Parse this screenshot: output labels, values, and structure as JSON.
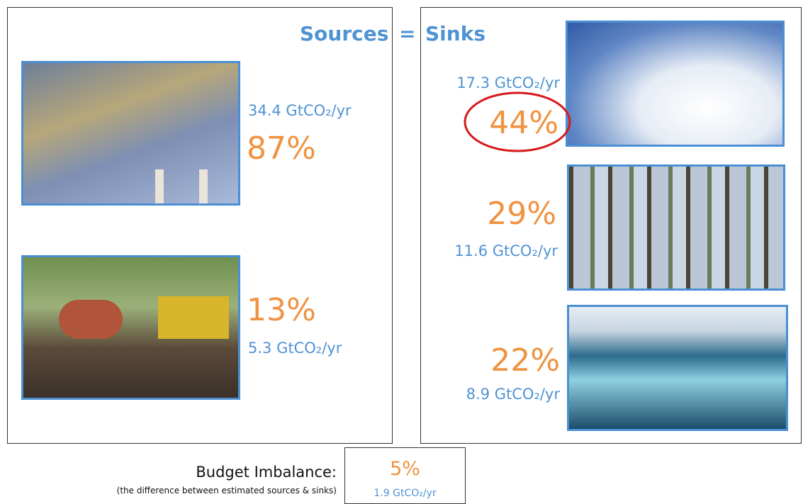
{
  "heading": {
    "sources": "Sources",
    "equals": "=",
    "sinks": "Sinks"
  },
  "sources": [
    {
      "amount": "34.4 GtCO₂/yr",
      "share": "87%"
    },
    {
      "amount": "5.3 GtCO₂/yr",
      "share": "13%"
    }
  ],
  "sinks": [
    {
      "amount": "17.3 GtCO₂/yr",
      "share": "44%"
    },
    {
      "amount": "11.6 GtCO₂/yr",
      "share": "29%"
    },
    {
      "amount": "8.9 GtCO₂/yr",
      "share": "22%"
    }
  ],
  "imbalance": {
    "label": "Budget Imbalance:",
    "note": "(the difference between estimated sources & sinks)",
    "share": "5%",
    "amount": "1.9 GtCO₂/yr"
  }
}
